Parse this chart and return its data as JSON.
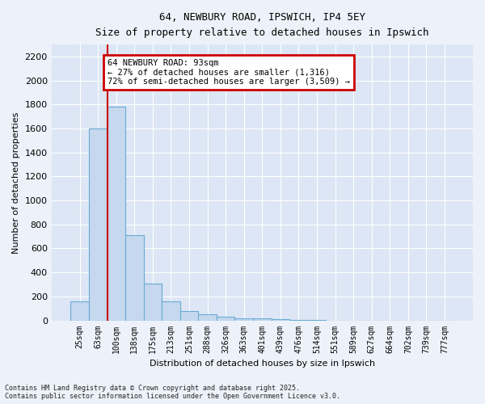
{
  "title1": "64, NEWBURY ROAD, IPSWICH, IP4 5EY",
  "title2": "Size of property relative to detached houses in Ipswich",
  "xlabel": "Distribution of detached houses by size in Ipswich",
  "ylabel": "Number of detached properties",
  "bar_labels": [
    "25sqm",
    "63sqm",
    "100sqm",
    "138sqm",
    "175sqm",
    "213sqm",
    "251sqm",
    "288sqm",
    "326sqm",
    "363sqm",
    "401sqm",
    "439sqm",
    "476sqm",
    "514sqm",
    "551sqm",
    "589sqm",
    "627sqm",
    "664sqm",
    "702sqm",
    "739sqm",
    "777sqm"
  ],
  "bar_values": [
    160,
    1600,
    1780,
    710,
    310,
    160,
    80,
    50,
    30,
    20,
    15,
    10,
    5,
    3,
    0,
    0,
    0,
    0,
    0,
    0,
    0
  ],
  "bar_color": "#c5d8ee",
  "bar_edgecolor": "#6aaad4",
  "vline_pos": 1.5,
  "vline_color": "#cc0000",
  "annotation_text": "64 NEWBURY ROAD: 93sqm\n← 27% of detached houses are smaller (1,316)\n72% of semi-detached houses are larger (3,509) →",
  "annotation_box_color": "#cc0000",
  "ylim": [
    0,
    2300
  ],
  "yticks": [
    0,
    200,
    400,
    600,
    800,
    1000,
    1200,
    1400,
    1600,
    1800,
    2000,
    2200
  ],
  "footnote1": "Contains HM Land Registry data © Crown copyright and database right 2025.",
  "footnote2": "Contains public sector information licensed under the Open Government Licence v3.0.",
  "bg_color": "#edf2fa",
  "plot_bg_color": "#dce6f5",
  "grid_color": "#ffffff"
}
